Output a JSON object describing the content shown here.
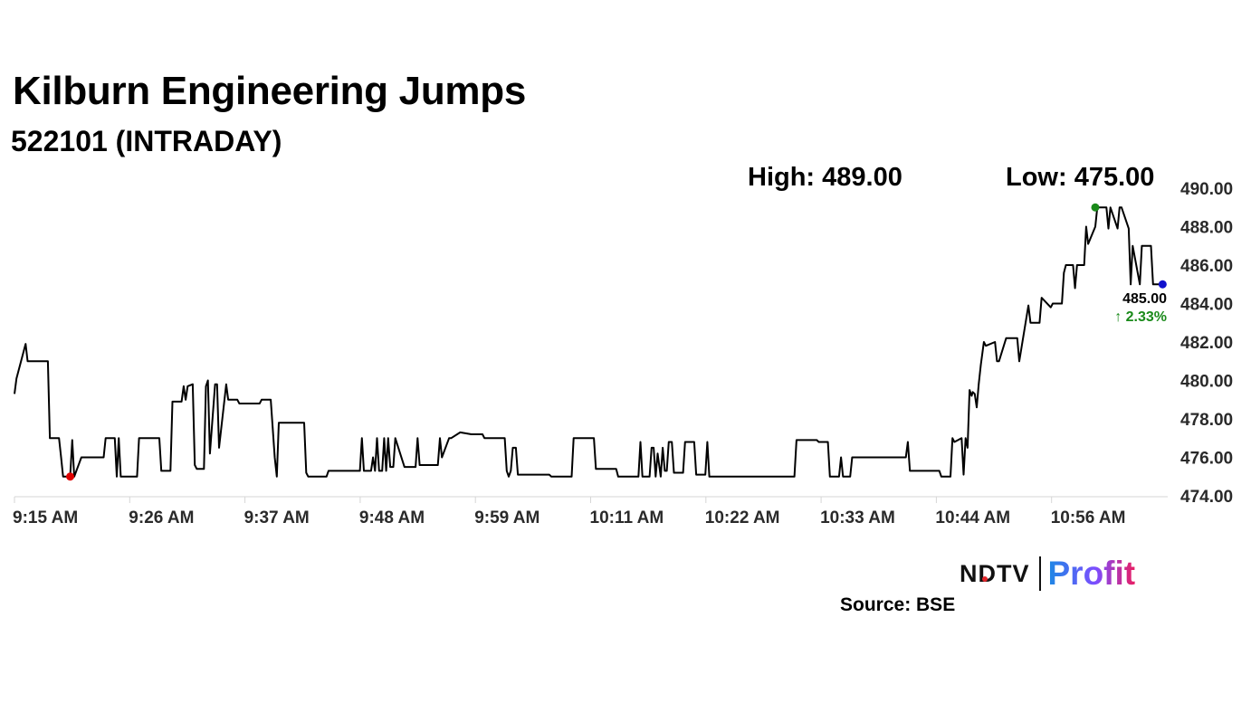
{
  "header": {
    "title": "Kilburn Engineering Jumps",
    "subtitle": "522101 (INTRADAY)",
    "high_label": "High: 489.00",
    "low_label": "Low: 475.00"
  },
  "footer": {
    "brand_left": "NDTV",
    "brand_right": "Profit",
    "source": "Source: BSE"
  },
  "chart_data": {
    "type": "line",
    "x_ticks": [
      "9:15 AM",
      "9:26 AM",
      "9:37 AM",
      "9:48 AM",
      "9:59 AM",
      "10:11 AM",
      "10:22 AM",
      "10:33 AM",
      "10:44 AM",
      "10:56 AM"
    ],
    "y_ticks": [
      "474.00",
      "476.00",
      "478.00",
      "480.00",
      "482.00",
      "484.00",
      "486.00",
      "488.00",
      "490.00"
    ],
    "ylim": [
      474,
      490
    ],
    "grid": false,
    "last_price_label": "485.00",
    "change_label": "↑ 2.33%",
    "colors": {
      "line": "#000000",
      "low_marker": "#e00000",
      "high_marker": "#1a8a1a",
      "last_marker": "#1010cc",
      "change": "#1a8a1a"
    },
    "series": [
      {
        "points": [
          [
            "9:15",
            479.3
          ],
          [
            "9:15",
            480.1
          ],
          [
            "9:16",
            481.9
          ],
          [
            "9:16",
            481.0
          ],
          [
            "9:17",
            481.0
          ],
          [
            "9:18",
            481.0
          ],
          [
            "9:18",
            477.0
          ],
          [
            "9:19",
            477.0
          ],
          [
            "9:19",
            476.0
          ],
          [
            "9:19",
            475.0
          ],
          [
            "9:20",
            475.0
          ],
          [
            "9:20",
            476.9
          ],
          [
            "9:20",
            475.0
          ],
          [
            "9:21",
            476.0
          ],
          [
            "9:22",
            476.0
          ],
          [
            "9:23",
            476.0
          ],
          [
            "9:23",
            477.0
          ],
          [
            "9:24",
            477.0
          ],
          [
            "9:24",
            475.0
          ],
          [
            "9:24",
            477.0
          ],
          [
            "9:24",
            475.0
          ],
          [
            "9:25",
            475.0
          ],
          [
            "9:25",
            475.0
          ],
          [
            "9:26",
            475.0
          ],
          [
            "9:26",
            477.0
          ],
          [
            "9:27",
            477.0
          ],
          [
            "9:28",
            477.0
          ],
          [
            "9:28",
            475.3
          ],
          [
            "9:29",
            475.3
          ],
          [
            "9:29",
            478.9
          ],
          [
            "9:30",
            478.9
          ],
          [
            "9:30",
            479.7
          ],
          [
            "9:30",
            479.0
          ],
          [
            "9:30",
            479.7
          ],
          [
            "9:31",
            479.8
          ],
          [
            "9:31",
            475.6
          ],
          [
            "9:31",
            475.4
          ],
          [
            "9:32",
            475.4
          ],
          [
            "9:32",
            479.7
          ],
          [
            "9:32",
            480.0
          ],
          [
            "9:32",
            476.2
          ],
          [
            "9:33",
            479.8
          ],
          [
            "9:33",
            479.8
          ],
          [
            "9:33",
            476.5
          ],
          [
            "9:34",
            479.8
          ],
          [
            "9:34",
            479.0
          ],
          [
            "9:35",
            479.0
          ],
          [
            "9:35",
            478.8
          ],
          [
            "9:36",
            478.8
          ],
          [
            "9:37",
            478.8
          ],
          [
            "9:37",
            479.0
          ],
          [
            "9:38",
            479.0
          ],
          [
            "9:38",
            477.5
          ],
          [
            "9:38",
            476.0
          ],
          [
            "9:38",
            475.0
          ],
          [
            "9:38",
            477.8
          ],
          [
            "9:39",
            477.8
          ],
          [
            "9:40",
            477.8
          ],
          [
            "9:41",
            477.8
          ],
          [
            "9:41",
            475.2
          ],
          [
            "9:41",
            475.0
          ],
          [
            "9:42",
            475.0
          ],
          [
            "9:43",
            475.0
          ],
          [
            "9:43",
            475.3
          ],
          [
            "9:44",
            475.3
          ],
          [
            "9:45",
            475.3
          ],
          [
            "9:46",
            475.3
          ],
          [
            "9:46",
            477.0
          ],
          [
            "9:46",
            475.3
          ],
          [
            "9:47",
            475.3
          ],
          [
            "9:47",
            476.0
          ],
          [
            "9:47",
            475.3
          ],
          [
            "9:47",
            477.0
          ],
          [
            "9:47",
            475.3
          ],
          [
            "9:48",
            475.3
          ],
          [
            "9:48",
            477.0
          ],
          [
            "9:48",
            475.3
          ],
          [
            "9:48",
            477.0
          ],
          [
            "9:48",
            475.5
          ],
          [
            "9:49",
            475.5
          ],
          [
            "9:49",
            477.0
          ],
          [
            "9:50",
            475.5
          ],
          [
            "9:50",
            475.5
          ],
          [
            "9:51",
            475.5
          ],
          [
            "9:51",
            477.0
          ],
          [
            "9:51",
            475.6
          ],
          [
            "9:52",
            475.6
          ],
          [
            "9:53",
            475.6
          ],
          [
            "9:53",
            477.0
          ],
          [
            "9:53",
            476.0
          ],
          [
            "9:54",
            477.0
          ],
          [
            "9:54",
            477.0
          ],
          [
            "9:55",
            477.3
          ],
          [
            "9:56",
            477.2
          ],
          [
            "9:57",
            477.2
          ],
          [
            "9:57",
            477.0
          ],
          [
            "9:58",
            477.0
          ],
          [
            "9:59",
            477.0
          ],
          [
            "9:59",
            475.3
          ],
          [
            "9:59",
            475.0
          ],
          [
            "9:59",
            475.3
          ],
          [
            "9:59",
            476.5
          ],
          [
            "9:59",
            476.5
          ],
          [
            "10:00",
            476.5
          ],
          [
            "10:00",
            475.1
          ],
          [
            "10:01",
            475.1
          ],
          [
            "10:02",
            475.1
          ],
          [
            "10:03",
            475.1
          ],
          [
            "10:03",
            475.0
          ],
          [
            "10:04",
            475.0
          ],
          [
            "10:05",
            475.0
          ],
          [
            "10:05",
            477.0
          ],
          [
            "10:06",
            477.0
          ],
          [
            "10:07",
            477.0
          ],
          [
            "10:07",
            475.4
          ],
          [
            "10:08",
            475.4
          ],
          [
            "10:09",
            475.4
          ],
          [
            "10:09",
            475.0
          ],
          [
            "10:10",
            475.0
          ],
          [
            "10:11",
            475.0
          ],
          [
            "10:11",
            476.8
          ],
          [
            "10:11",
            475.0
          ],
          [
            "10:12",
            475.0
          ],
          [
            "10:12",
            476.5
          ],
          [
            "10:12",
            476.5
          ],
          [
            "10:12",
            475.0
          ],
          [
            "10:12",
            476.2
          ],
          [
            "10:13",
            475.0
          ],
          [
            "10:13",
            476.5
          ],
          [
            "10:13",
            475.3
          ],
          [
            "10:13",
            475.3
          ],
          [
            "10:13",
            476.8
          ],
          [
            "10:14",
            476.8
          ],
          [
            "10:14",
            475.2
          ],
          [
            "10:15",
            475.2
          ],
          [
            "10:15",
            476.8
          ],
          [
            "10:16",
            476.8
          ],
          [
            "10:16",
            475.1
          ],
          [
            "10:17",
            475.1
          ],
          [
            "10:17",
            476.8
          ],
          [
            "10:17",
            475.0
          ],
          [
            "10:18",
            475.0
          ],
          [
            "10:19",
            475.0
          ],
          [
            "10:20",
            475.0
          ],
          [
            "10:21",
            475.0
          ],
          [
            "10:22",
            475.0
          ],
          [
            "10:23",
            475.0
          ],
          [
            "10:24",
            475.0
          ],
          [
            "10:25",
            475.0
          ],
          [
            "10:25",
            476.9
          ],
          [
            "10:26",
            476.9
          ],
          [
            "10:27",
            476.9
          ],
          [
            "10:27",
            476.8
          ],
          [
            "10:28",
            476.8
          ],
          [
            "10:28",
            475.0
          ],
          [
            "10:29",
            475.0
          ],
          [
            "10:29",
            476.0
          ],
          [
            "10:29",
            475.0
          ],
          [
            "10:29",
            475.0
          ],
          [
            "10:30",
            475.0
          ],
          [
            "10:30",
            476.0
          ],
          [
            "10:31",
            476.0
          ],
          [
            "10:32",
            476.0
          ],
          [
            "10:33",
            476.0
          ],
          [
            "10:34",
            476.0
          ],
          [
            "10:35",
            476.0
          ],
          [
            "10:35",
            476.8
          ],
          [
            "10:35",
            475.3
          ],
          [
            "10:36",
            475.3
          ],
          [
            "10:37",
            475.3
          ],
          [
            "10:38",
            475.3
          ],
          [
            "10:38",
            475.0
          ],
          [
            "10:39",
            475.0
          ],
          [
            "10:39",
            477.0
          ],
          [
            "10:39",
            476.8
          ],
          [
            "10:40",
            477.0
          ],
          [
            "10:40",
            475.1
          ],
          [
            "10:40",
            477.0
          ],
          [
            "10:40",
            476.5
          ],
          [
            "10:40",
            479.5
          ],
          [
            "10:40",
            479.2
          ],
          [
            "10:41",
            479.4
          ],
          [
            "10:41",
            479.3
          ],
          [
            "10:41",
            478.6
          ],
          [
            "10:41",
            479.8
          ],
          [
            "10:41",
            480.8
          ],
          [
            "10:42",
            482.0
          ],
          [
            "10:42",
            481.8
          ],
          [
            "10:43",
            482.0
          ],
          [
            "10:43",
            481.0
          ],
          [
            "10:43",
            481.0
          ],
          [
            "10:44",
            482.2
          ],
          [
            "10:44",
            482.2
          ],
          [
            "10:45",
            482.2
          ],
          [
            "10:45",
            481.0
          ],
          [
            "10:46",
            483.9
          ],
          [
            "10:46",
            483.0
          ],
          [
            "10:47",
            483.0
          ],
          [
            "10:47",
            484.3
          ],
          [
            "10:48",
            483.8
          ],
          [
            "10:48",
            484.0
          ],
          [
            "10:49",
            484.0
          ],
          [
            "10:49",
            485.6
          ],
          [
            "10:49",
            486.0
          ],
          [
            "10:50",
            486.0
          ],
          [
            "10:50",
            484.8
          ],
          [
            "10:50",
            486.0
          ],
          [
            "10:51",
            486.0
          ],
          [
            "10:51",
            488.0
          ],
          [
            "10:51",
            487.1
          ],
          [
            "10:52",
            488.0
          ],
          [
            "10:52",
            489.0
          ],
          [
            "10:53",
            489.0
          ],
          [
            "10:53",
            487.9
          ],
          [
            "10:53",
            489.0
          ],
          [
            "10:54",
            487.9
          ],
          [
            "10:54",
            489.0
          ],
          [
            "10:54",
            489.0
          ],
          [
            "10:55",
            487.9
          ],
          [
            "10:55",
            485.0
          ],
          [
            "10:55",
            487.0
          ],
          [
            "10:56",
            485.0
          ],
          [
            "10:56",
            487.0
          ],
          [
            "10:57",
            487.0
          ],
          [
            "10:57",
            485.0
          ],
          [
            "10:57",
            485.0
          ],
          [
            "10:58",
            485.0
          ]
        ]
      }
    ],
    "markers": [
      {
        "name": "low",
        "time": "9:20",
        "value": 475.0
      },
      {
        "name": "high",
        "time": "10:52",
        "value": 489.0
      },
      {
        "name": "last",
        "time": "10:58",
        "value": 485.0
      }
    ]
  }
}
